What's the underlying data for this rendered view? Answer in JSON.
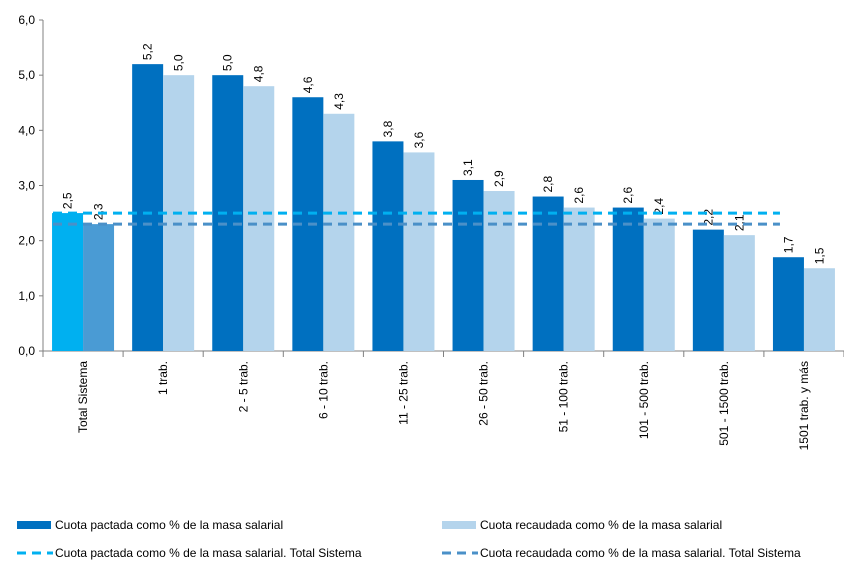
{
  "chart_data": {
    "type": "bar",
    "categories": [
      "Total Sistema",
      "1 trab.",
      "2 - 5 trab.",
      "6 - 10 trab.",
      "11 - 25 trab.",
      "26 - 50 trab.",
      "51 - 100 trab.",
      "101 - 500 trab.",
      "501 - 1500 trab.",
      "1501 trab. y más"
    ],
    "series": [
      {
        "name": "Cuota pactada como % de la masa salarial",
        "values": [
          2.5,
          5.2,
          5.0,
          4.6,
          3.8,
          3.1,
          2.8,
          2.6,
          2.2,
          1.7
        ],
        "labels": [
          "2,5",
          "5,2",
          "5,0",
          "4,6",
          "3,8",
          "3,1",
          "2,8",
          "2,6",
          "2,2",
          "1,7"
        ],
        "color": "#0070c0",
        "total_color": "#00b0f0"
      },
      {
        "name": "Cuota recaudada como % de la masa salarial",
        "values": [
          2.3,
          5.0,
          4.8,
          4.3,
          3.6,
          2.9,
          2.6,
          2.4,
          2.1,
          1.5
        ],
        "labels": [
          "2,3",
          "5,0",
          "4,8",
          "4,3",
          "3,6",
          "2,9",
          "2,6",
          "2,4",
          "2,1",
          "1,5"
        ],
        "color": "#b4d4ec",
        "total_color": "#4a9bd4"
      }
    ],
    "reference_lines": [
      {
        "name": "Cuota pactada como % de la masa salarial. Total Sistema",
        "value": 2.5,
        "color": "#00b0f0",
        "style": "dashed"
      },
      {
        "name": "Cuota recaudada como % de la masa salarial. Total Sistema",
        "value": 2.3,
        "color": "#4a90c8",
        "style": "dashed"
      }
    ],
    "ylim": [
      0,
      6
    ],
    "yticks": [
      0,
      1,
      2,
      3,
      4,
      5,
      6
    ],
    "ytick_labels": [
      "0,0",
      "1,0",
      "2,0",
      "3,0",
      "4,0",
      "5,0",
      "6,0"
    ],
    "legend_position": "bottom",
    "grid": false,
    "title": "",
    "xlabel": "",
    "ylabel": ""
  }
}
